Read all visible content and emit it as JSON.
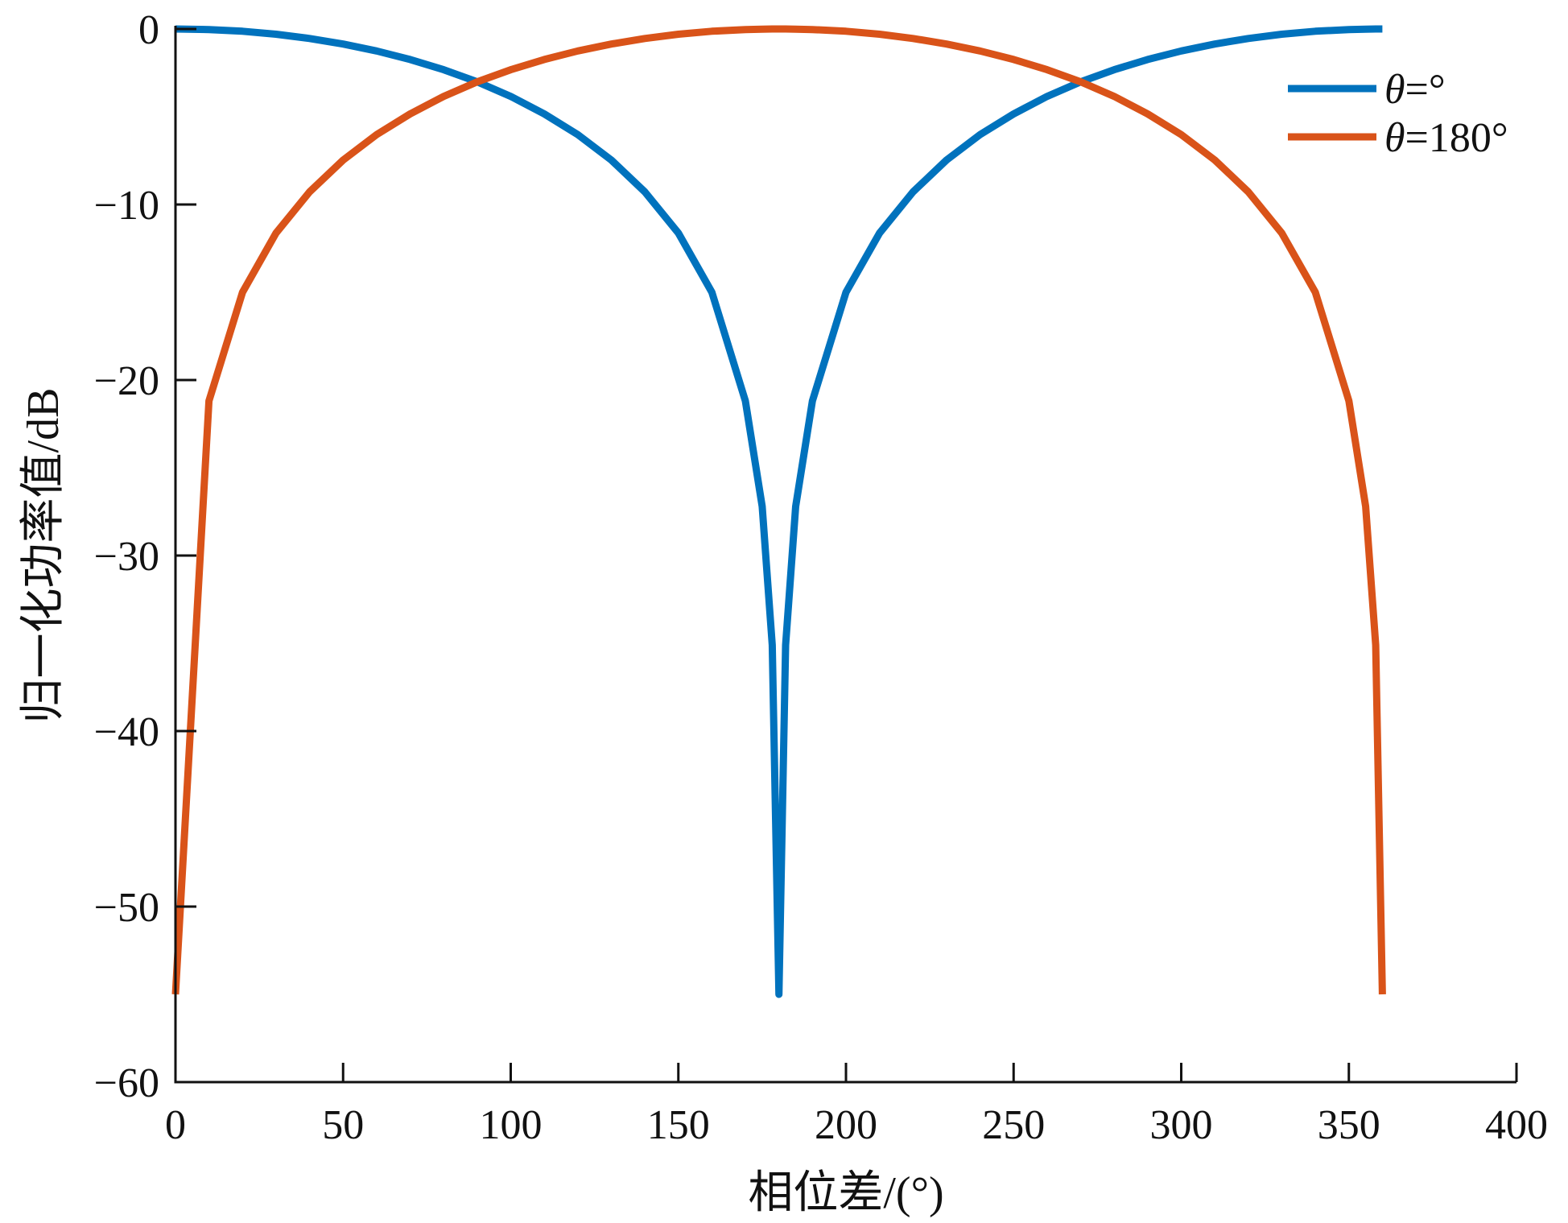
{
  "chart_data": {
    "type": "line",
    "title": "",
    "xlabel": "相位差/(°)",
    "ylabel": "归一化功率值/dB",
    "xlim": [
      0,
      400
    ],
    "ylim": [
      -60,
      0
    ],
    "x_ticks": [
      0,
      50,
      100,
      150,
      200,
      250,
      300,
      350,
      400
    ],
    "y_ticks": [
      0,
      -10,
      -20,
      -30,
      -40,
      -50,
      -60
    ],
    "x_tick_labels": [
      "0",
      "50",
      "100",
      "150",
      "200",
      "250",
      "300",
      "350",
      "400"
    ],
    "y_tick_labels": [
      "0",
      "−10",
      "−20",
      "−30",
      "−40",
      "−50",
      "−60"
    ],
    "grid": false,
    "legend_position": "top-right",
    "x": [
      0,
      10,
      20,
      30,
      40,
      50,
      60,
      70,
      80,
      90,
      100,
      110,
      120,
      130,
      140,
      150,
      160,
      170,
      175,
      178,
      180,
      182,
      185,
      190,
      200,
      210,
      220,
      230,
      240,
      250,
      260,
      270,
      280,
      290,
      300,
      310,
      320,
      330,
      340,
      350,
      355,
      358,
      360
    ],
    "series": [
      {
        "name": "θ=°",
        "legend_symbol": "θ",
        "legend_suffix": "=°",
        "color": "#0072BD",
        "values": [
          0,
          -0.03,
          -0.13,
          -0.3,
          -0.54,
          -0.86,
          -1.25,
          -1.74,
          -2.32,
          -3.01,
          -3.84,
          -4.84,
          -6.02,
          -7.47,
          -9.28,
          -11.63,
          -15.0,
          -21.19,
          -27.2,
          -35.1,
          -55,
          -35.1,
          -27.2,
          -21.19,
          -15.0,
          -11.63,
          -9.28,
          -7.47,
          -6.02,
          -4.84,
          -3.84,
          -3.01,
          -2.32,
          -1.74,
          -1.25,
          -0.86,
          -0.54,
          -0.3,
          -0.13,
          -0.03,
          -0.01,
          0,
          0
        ]
      },
      {
        "name": "θ=180°",
        "legend_symbol": "θ",
        "legend_suffix": "=180°",
        "color": "#D95319",
        "values": [
          -55,
          -21.19,
          -15.0,
          -11.63,
          -9.28,
          -7.47,
          -6.02,
          -4.84,
          -3.84,
          -3.01,
          -2.32,
          -1.74,
          -1.25,
          -0.86,
          -0.54,
          -0.3,
          -0.13,
          -0.03,
          -0.01,
          0,
          0,
          0,
          -0.01,
          -0.03,
          -0.13,
          -0.3,
          -0.54,
          -0.86,
          -1.25,
          -1.74,
          -2.32,
          -3.01,
          -3.84,
          -4.84,
          -6.02,
          -7.47,
          -9.28,
          -11.63,
          -15.0,
          -21.19,
          -27.2,
          -35.1,
          -55
        ]
      }
    ]
  }
}
